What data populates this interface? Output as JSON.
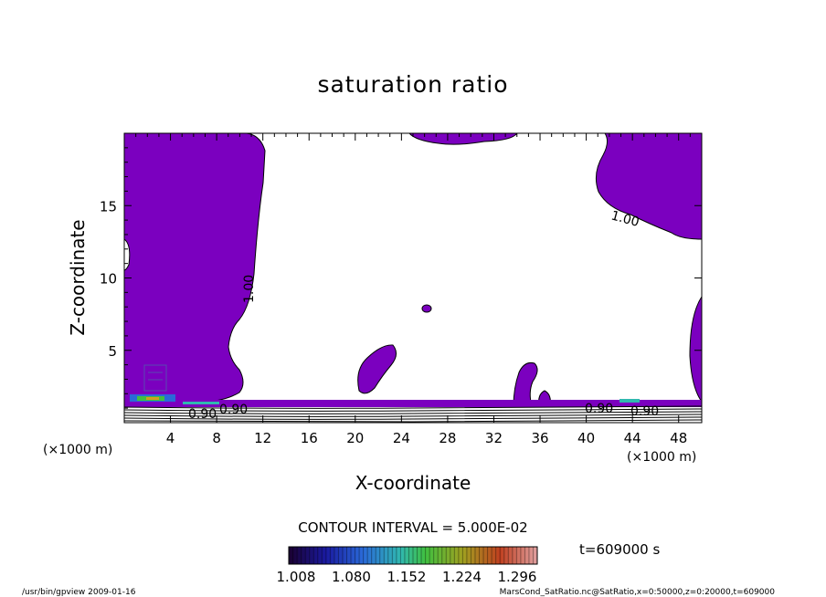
{
  "chart_data": {
    "type": "heatmap",
    "title": "saturation ratio",
    "xlabel": "X-coordinate",
    "ylabel": "Z-coordinate",
    "x_unit": "(×1000 m)",
    "z_unit": "(×1000 m)",
    "xlim": [
      0,
      50
    ],
    "ylim": [
      0,
      20
    ],
    "x_ticks": [
      4,
      8,
      12,
      16,
      20,
      24,
      28,
      32,
      36,
      40,
      44,
      48
    ],
    "y_ticks": [
      5,
      10,
      15
    ],
    "contour_interval_text": "CONTOUR INTERVAL = 5.000E-02",
    "time_text": "t=609000 s",
    "contour_labels": [
      "1.00",
      "1.00",
      "0.90",
      "0.90",
      "0.90",
      "0.90"
    ],
    "colorbar": {
      "tick_labels": [
        "1.008",
        "1.080",
        "1.152",
        "1.224",
        "1.296"
      ],
      "min": 1.008,
      "max": 1.296
    },
    "colors": {
      "fill": "#7b00bf",
      "line": "#000000"
    }
  },
  "footer": {
    "left": "/usr/bin/gpview  2009-01-16",
    "right": "MarsCond_SatRatio.nc@SatRatio,x=0:50000,z=0:20000,t=609000"
  }
}
